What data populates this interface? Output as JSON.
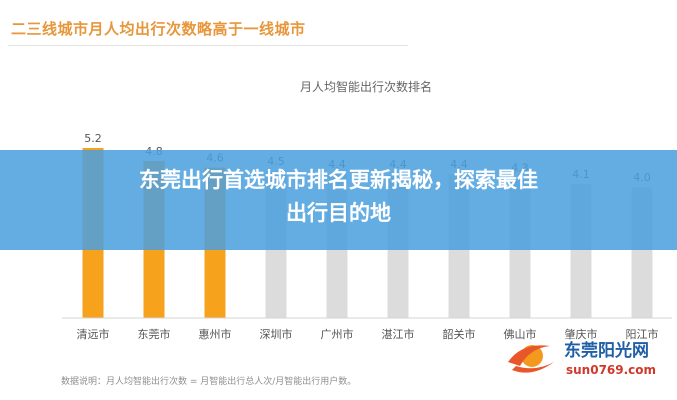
{
  "heading": "二三线城市月人均出行次数略高于一线城市",
  "banner": {
    "line1": "东莞出行首选城市排名更新揭秘，探索最佳",
    "line2": "出行目的地"
  },
  "footnote": "数据说明：月人均智能出行次数 = 月智能出行总人次/月智能出行用户数。",
  "watermark": {
    "brand": "东莞阳光网",
    "url": "sun0769.com"
  },
  "colors": {
    "highlight": "#f7a21c",
    "muted": "#dcdcdc",
    "banner": "#4aa0de",
    "heading": "#e8963a"
  },
  "chart_data": {
    "type": "bar",
    "title": "月人均智能出行次数排名",
    "categories": [
      "清远市",
      "东莞市",
      "惠州市",
      "深圳市",
      "广州市",
      "湛江市",
      "韶关市",
      "佛山市",
      "肇庆市",
      "阳江市"
    ],
    "values": [
      5.2,
      4.8,
      4.6,
      4.5,
      4.4,
      4.4,
      4.4,
      4.3,
      4.1,
      4.0
    ],
    "highlighted": [
      true,
      true,
      true,
      false,
      false,
      false,
      false,
      false,
      false,
      false
    ],
    "value_labels": [
      "5.2",
      "4.8",
      "4.6",
      "4.5",
      "4.4",
      "4.4",
      "4.4",
      "4.3",
      "4.1",
      "4.0"
    ],
    "ylim": [
      0,
      5.2
    ],
    "grid": false,
    "legend": "none"
  }
}
